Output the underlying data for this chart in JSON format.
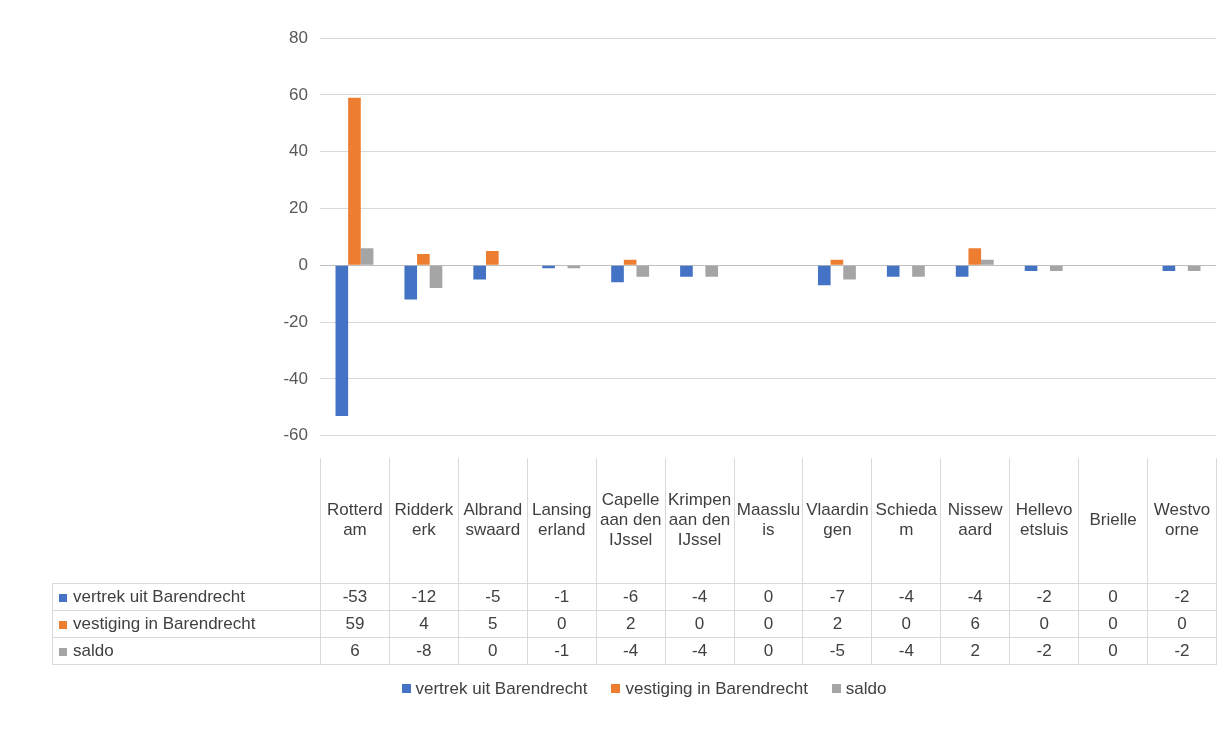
{
  "chart_data": {
    "type": "bar",
    "categories": [
      "Rotterdam",
      "Ridderkerk",
      "Albrandswaard",
      "Lansingerland",
      "Capelle aan den IJssel",
      "Krimpen aan den IJssel",
      "Maassluis",
      "Vlaardingen",
      "Schiedam",
      "Nissewaard",
      "Hellevoetsluis",
      "Brielle",
      "Westvoorne"
    ],
    "series": [
      {
        "name": "vertrek uit Barendrecht",
        "color": "#4472c4",
        "values": [
          -53,
          -12,
          -5,
          -1,
          -6,
          -4,
          0,
          -7,
          -4,
          -4,
          -2,
          0,
          -2
        ]
      },
      {
        "name": "vestiging in Barendrecht",
        "color": "#ed7d31",
        "values": [
          59,
          4,
          5,
          0,
          2,
          0,
          0,
          2,
          0,
          6,
          0,
          0,
          0
        ]
      },
      {
        "name": "saldo",
        "color": "#a5a5a5",
        "values": [
          6,
          -8,
          0,
          -1,
          -4,
          -4,
          0,
          -5,
          -4,
          2,
          -2,
          0,
          -2
        ]
      }
    ],
    "ylim": [
      -60,
      80
    ],
    "yticks": [
      -60,
      -40,
      -20,
      0,
      20,
      40,
      60,
      80
    ],
    "grid": "y",
    "data_labels": true,
    "legend": "bottom"
  }
}
